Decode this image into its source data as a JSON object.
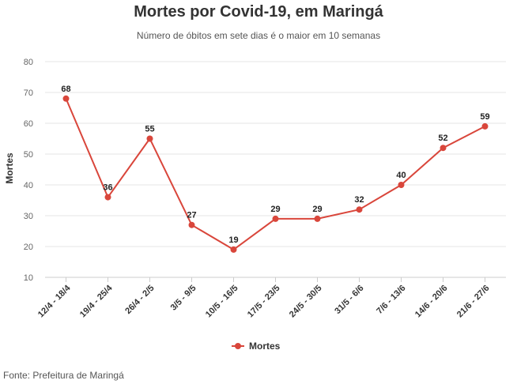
{
  "chart_data": {
    "type": "line",
    "title": "Mortes por Covid-19, em Maringá",
    "subtitle": "Número de óbitos em sete dias é o maior em 10 semanas",
    "ylabel": "Mortes",
    "xlabel": "",
    "ylim": [
      10,
      80
    ],
    "yticks": [
      "10",
      "20",
      "30",
      "40",
      "50",
      "60",
      "70",
      "80"
    ],
    "categories": [
      "12/4 - 18/4",
      "19/4 - 25/4",
      "26/4 - 2/5",
      "3/5 - 9/5",
      "10/5 - 16/5",
      "17/5 - 23/5",
      "24/5 - 30/5",
      "31/5 - 6/6",
      "7/6 - 13/6",
      "14/6 - 20/6",
      "21/6 - 27/6"
    ],
    "series": [
      {
        "name": "Mortes",
        "values": [
          68,
          36,
          55,
          27,
          19,
          29,
          29,
          32,
          40,
          52,
          59
        ]
      }
    ],
    "grid": true,
    "legend_position": "bottom-center",
    "color": "#d9463b"
  },
  "source": "Fonte: Prefeitura de Maringá"
}
